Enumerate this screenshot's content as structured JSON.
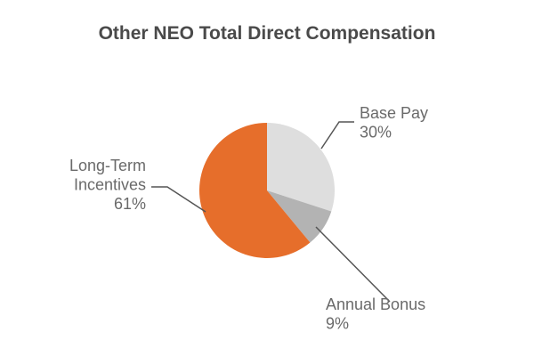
{
  "chart_data": {
    "type": "pie",
    "title": "Other NEO Total Direct Compensation",
    "categories": [
      "Base Pay",
      "Annual Bonus",
      "Long-Term Incentives"
    ],
    "values": [
      30,
      9,
      61
    ],
    "value_labels": [
      "30%",
      "9%",
      "61%"
    ],
    "label_lines": [
      [
        "Base Pay"
      ],
      [
        "Annual Bonus"
      ],
      [
        "Long-Term",
        "Incentives"
      ]
    ],
    "colors": [
      "#dedede",
      "#b3b3b3",
      "#e66e2b"
    ],
    "legend": "none"
  }
}
